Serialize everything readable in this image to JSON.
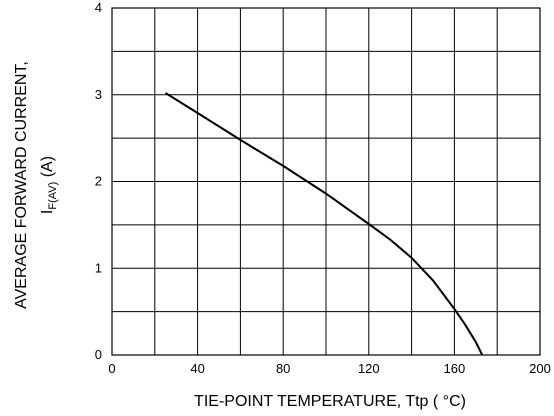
{
  "chart_data": {
    "type": "line",
    "title": "",
    "xlabel": "TIE-POINT TEMPERATURE, Ttp ( °C)",
    "ylabel_line1": "AVERAGE FORWARD  CURRENT,",
    "ylabel_line2_main": "I",
    "ylabel_line2_sub": "F(AV)",
    "ylabel_line2_unit": " (A)",
    "xlim": [
      0,
      200
    ],
    "ylim": [
      0,
      4
    ],
    "x_ticks": [
      0,
      40,
      80,
      120,
      160,
      200
    ],
    "x_tick_labels": [
      "0",
      "40",
      "80",
      "120",
      "160",
      "200"
    ],
    "y_ticks": [
      0,
      1,
      2,
      3,
      4
    ],
    "y_tick_labels": [
      "0",
      "1",
      "2",
      "3",
      "4"
    ],
    "x_grid_step": 20,
    "y_grid_step": 0.5,
    "grid": true,
    "series": [
      {
        "color": "#000000",
        "x": [
          25,
          40,
          60,
          80,
          100,
          120,
          130,
          140,
          150,
          160,
          165,
          170,
          173
        ],
        "y": [
          3.02,
          2.79,
          2.48,
          2.18,
          1.86,
          1.51,
          1.33,
          1.12,
          0.86,
          0.53,
          0.35,
          0.15,
          0.0
        ]
      }
    ]
  }
}
